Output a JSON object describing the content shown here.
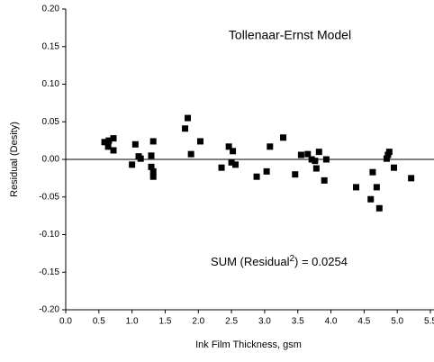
{
  "chart_data": {
    "type": "scatter",
    "title": "Tollenaar-Ernst Model",
    "annotation": {
      "prefix": "SUM (Residual",
      "superscript": "2",
      "suffix": ") = 0.0254"
    },
    "x_label": "Ink Film Thickness, gsm",
    "y_label": "Residual (Desity)",
    "color": "#000000",
    "reference_line": 0,
    "xlim": [
      0,
      5.5
    ],
    "ylim": [
      -0.2,
      0.2
    ],
    "xticks": [
      {
        "value": 0,
        "label": "0.0"
      },
      0.5,
      {
        "value": 1,
        "label": "1.0"
      },
      1.5,
      {
        "value": 2,
        "label": "2.0"
      },
      2.5,
      {
        "value": 3,
        "label": "3.0"
      },
      3.5,
      {
        "value": 4,
        "label": "4.0"
      },
      4.5,
      {
        "value": 5,
        "label": "5.0"
      },
      5.5
    ],
    "yticks": [
      {
        "value": -0.2,
        "label": "-0.20"
      },
      -0.15,
      {
        "value": -0.1,
        "label": "-0.10"
      },
      -0.05,
      {
        "value": 0,
        "label": "0.00"
      },
      0.05,
      {
        "value": 0.1,
        "label": "0.10"
      },
      0.15,
      {
        "value": 0.2,
        "label": "0.20"
      }
    ],
    "x": [
      0.585,
      0.65,
      0.64,
      0.72,
      0.72,
      1.0,
      1.05,
      1.1,
      1.13,
      1.29,
      1.32,
      1.29,
      1.32,
      1.32,
      1.8,
      1.84,
      1.89,
      2.03,
      2.35,
      2.46,
      2.52,
      2.5,
      2.56,
      2.88,
      3.03,
      3.08,
      3.28,
      3.46,
      3.55,
      3.65,
      3.71,
      3.76,
      3.78,
      3.82,
      3.93,
      3.9,
      4.38,
      4.63,
      4.6,
      4.69,
      4.73,
      4.84,
      4.86,
      4.88,
      4.95,
      5.21
    ],
    "values": [
      0.023,
      0.025,
      0.017,
      0.028,
      0.012,
      -0.007,
      0.02,
      0.004,
      0.001,
      0.005,
      0.024,
      -0.01,
      -0.016,
      -0.023,
      0.041,
      0.055,
      0.007,
      0.024,
      -0.011,
      0.017,
      0.011,
      -0.004,
      -0.007,
      -0.023,
      -0.016,
      0.017,
      0.029,
      -0.02,
      0.006,
      0.007,
      0.0,
      -0.002,
      -0.012,
      0.01,
      0.0,
      -0.028,
      -0.037,
      -0.017,
      -0.053,
      -0.037,
      -0.065,
      0.001,
      0.006,
      0.01,
      -0.011,
      -0.025
    ]
  }
}
